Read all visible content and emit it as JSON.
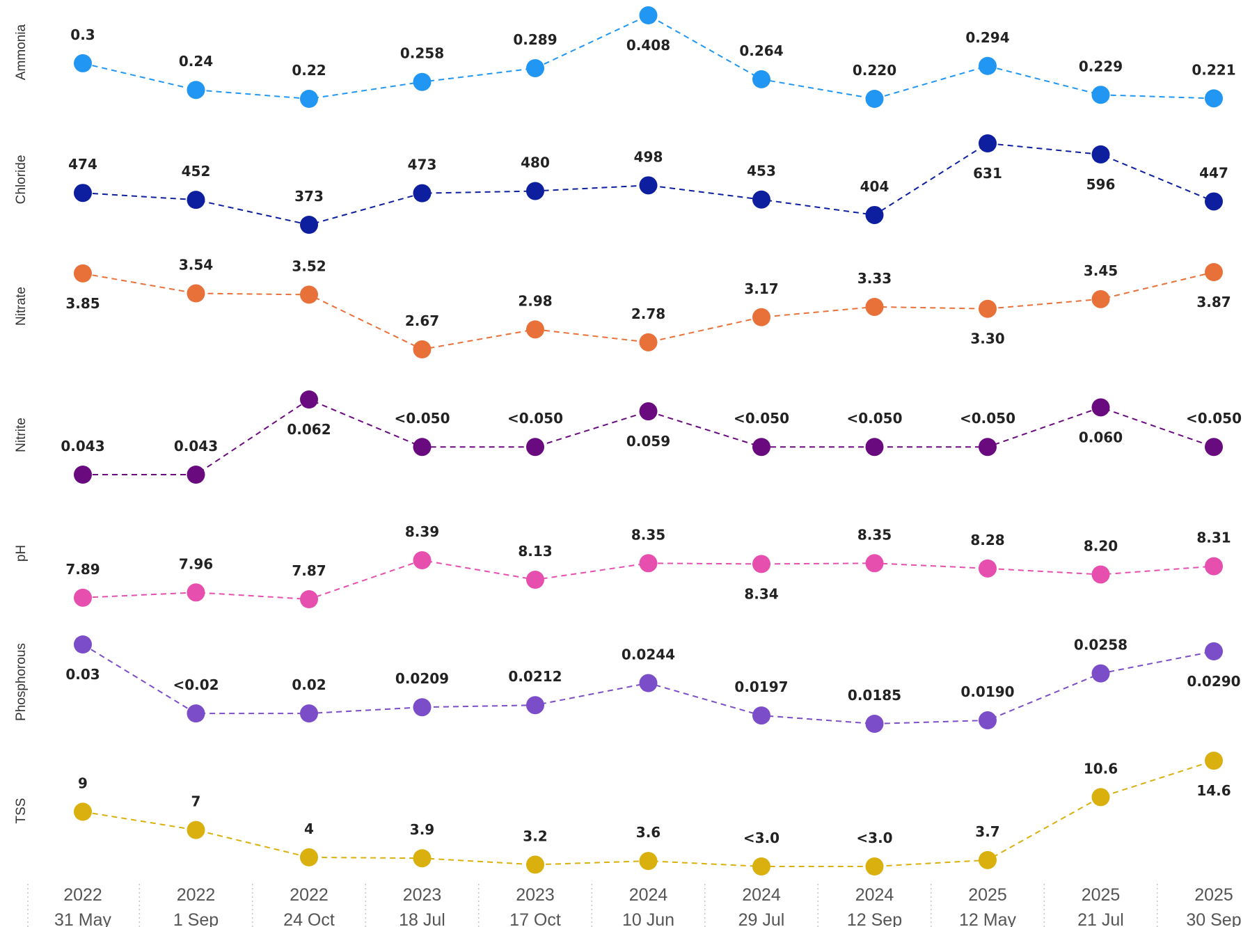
{
  "chart_data": {
    "type": "line",
    "x_years": [
      "2022",
      "2022",
      "2022",
      "2023",
      "2023",
      "2024",
      "2024",
      "2024",
      "2025",
      "2025",
      "2025"
    ],
    "x_dates": [
      "31 May",
      "1 Sep",
      "24 Oct",
      "18 Jul",
      "17 Oct",
      "10 Jun",
      "29 Jul",
      "12 Sep",
      "12 May",
      "21 Jul",
      "30 Sep"
    ],
    "grid": false,
    "legend": "none",
    "series": [
      {
        "name": "Ammonia",
        "color": "#2196F3",
        "values": [
          0.3,
          0.24,
          0.22,
          0.258,
          0.289,
          0.408,
          0.264,
          0.22,
          0.294,
          0.229,
          0.221
        ],
        "labels": [
          "0.3",
          "0.24",
          "0.22",
          "0.258",
          "0.289",
          "0.408",
          "0.264",
          "0.220",
          "0.294",
          "0.229",
          "0.221"
        ],
        "ylim": [
          0.22,
          0.408
        ]
      },
      {
        "name": "Chloride",
        "color": "#0D1F9E",
        "values": [
          474,
          452,
          373,
          473,
          480,
          498,
          453,
          404,
          631,
          596,
          447
        ],
        "labels": [
          "474",
          "452",
          "373",
          "473",
          "480",
          "498",
          "453",
          "404",
          "631",
          "596",
          "447"
        ],
        "ylim": [
          373,
          631
        ]
      },
      {
        "name": "Nitrate",
        "color": "#E8713A",
        "values": [
          3.85,
          3.54,
          3.52,
          2.67,
          2.98,
          2.78,
          3.17,
          3.33,
          3.3,
          3.45,
          3.87
        ],
        "labels": [
          "3.85",
          "3.54",
          "3.52",
          "2.67",
          "2.98",
          "2.78",
          "3.17",
          "3.33",
          "3.30",
          "3.45",
          "3.87"
        ],
        "ylim": [
          2.67,
          3.87
        ]
      },
      {
        "name": "Nitrite",
        "color": "#6A0A7F",
        "values": [
          0.043,
          0.043,
          0.062,
          0.05,
          0.05,
          0.059,
          0.05,
          0.05,
          0.05,
          0.06,
          0.05
        ],
        "labels": [
          "0.043",
          "0.043",
          "0.062",
          "<0.050",
          "<0.050",
          "0.059",
          "<0.050",
          "<0.050",
          "<0.050",
          "0.060",
          "<0.050"
        ],
        "ylim": [
          0.043,
          0.062
        ]
      },
      {
        "name": "pH",
        "color": "#E64FAD",
        "values": [
          7.89,
          7.96,
          7.87,
          8.39,
          8.13,
          8.35,
          8.34,
          8.35,
          8.28,
          8.2,
          8.31
        ],
        "labels": [
          "7.89",
          "7.96",
          "7.87",
          "8.39",
          "8.13",
          "8.35",
          "8.34",
          "8.35",
          "8.28",
          "8.20",
          "8.31"
        ],
        "ylim": [
          7.87,
          8.39
        ]
      },
      {
        "name": "Phosphorous",
        "color": "#7C4DC9",
        "values": [
          0.03,
          0.02,
          0.02,
          0.0209,
          0.0212,
          0.0244,
          0.0197,
          0.0185,
          0.019,
          0.0258,
          0.029
        ],
        "labels": [
          "0.03",
          "<0.02",
          "0.02",
          "0.0209",
          "0.0212",
          "0.0244",
          "0.0197",
          "0.0185",
          "0.0190",
          "0.0258",
          "0.0290"
        ],
        "ylim": [
          0.0185,
          0.03
        ]
      },
      {
        "name": "TSS",
        "color": "#D9B00E",
        "values": [
          9,
          7,
          4,
          3.9,
          3.2,
          3.6,
          3.0,
          3.0,
          3.7,
          10.6,
          14.6
        ],
        "labels": [
          "9",
          "7",
          "4",
          "3.9",
          "3.2",
          "3.6",
          "<3.0",
          "<3.0",
          "3.7",
          "10.6",
          "14.6"
        ],
        "ylim": [
          3.0,
          14.6
        ]
      }
    ]
  }
}
